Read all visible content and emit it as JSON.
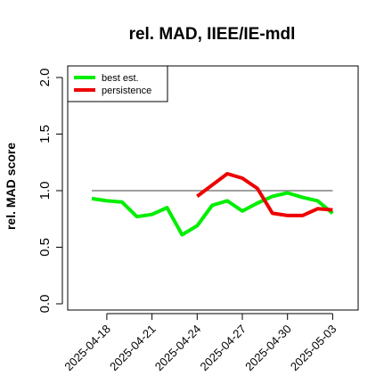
{
  "chart_data": {
    "type": "line",
    "title": "rel. MAD, IIEE/IE-mdl",
    "xlabel": "",
    "ylabel": "rel. MAD score",
    "ylim": [
      0,
      2
    ],
    "yticks": [
      "0.0",
      "0.5",
      "1.0",
      "1.5",
      "2.0"
    ],
    "xticks": [
      "2025-04-18",
      "2025-04-21",
      "2025-04-24",
      "2025-04-27",
      "2025-04-30",
      "2025-05-03"
    ],
    "reference_line": 1.0,
    "legend_position": "top-left",
    "grid": false,
    "series": [
      {
        "name": "best est.",
        "color": "#00ee00",
        "points": [
          [
            "2025-04-17",
            0.93
          ],
          [
            "2025-04-18",
            0.91
          ],
          [
            "2025-04-19",
            0.9
          ],
          [
            "2025-04-20",
            0.77
          ],
          [
            "2025-04-21",
            0.79
          ],
          [
            "2025-04-22",
            0.85
          ],
          [
            "2025-04-23",
            0.61
          ],
          [
            "2025-04-24",
            0.69
          ],
          [
            "2025-04-25",
            0.87
          ],
          [
            "2025-04-26",
            0.91
          ],
          [
            "2025-04-27",
            0.82
          ],
          [
            "2025-04-28",
            0.89
          ],
          [
            "2025-04-29",
            0.95
          ],
          [
            "2025-04-30",
            0.98
          ],
          [
            "2025-05-01",
            0.94
          ],
          [
            "2025-05-02",
            0.91
          ],
          [
            "2025-05-03",
            0.8
          ]
        ]
      },
      {
        "name": "persistence",
        "color": "#ee0000",
        "points": [
          [
            "2025-04-24",
            0.95
          ],
          [
            "2025-04-25",
            1.05
          ],
          [
            "2025-04-26",
            1.15
          ],
          [
            "2025-04-27",
            1.11
          ],
          [
            "2025-04-28",
            1.02
          ],
          [
            "2025-04-29",
            0.8
          ],
          [
            "2025-04-30",
            0.78
          ],
          [
            "2025-05-01",
            0.78
          ],
          [
            "2025-05-02",
            0.84
          ],
          [
            "2025-05-03",
            0.83
          ]
        ]
      }
    ]
  }
}
